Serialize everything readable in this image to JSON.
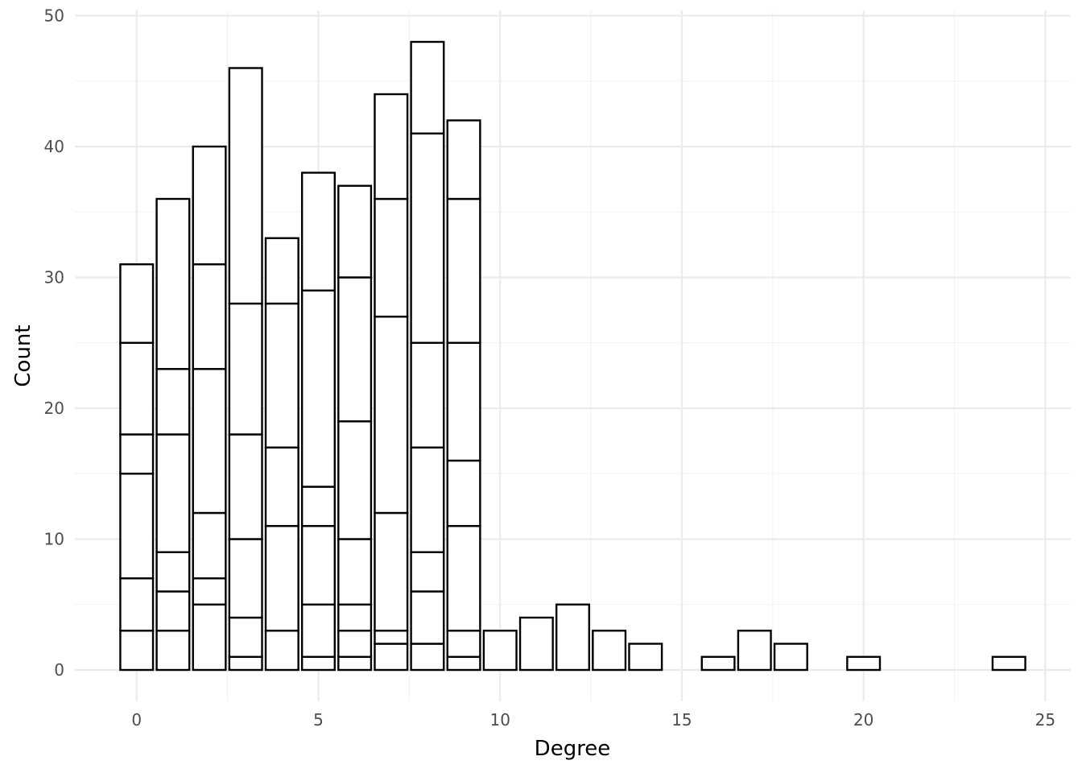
{
  "chart_data": {
    "type": "bar",
    "stacked": true,
    "title": "",
    "xlabel": "Degree",
    "ylabel": "Count",
    "xlim": [
      -1.7,
      25.7
    ],
    "ylim": [
      -2.4,
      50.4
    ],
    "x_ticks": [
      0,
      5,
      10,
      15,
      20,
      25
    ],
    "y_ticks": [
      0,
      10,
      20,
      30,
      40,
      50
    ],
    "grid": true,
    "legend": "none",
    "colors": {
      "fill": "#ffffff",
      "outline": "#000000",
      "grid_major": "#ebebeb",
      "grid_minor": "#f2f2f2"
    },
    "bars": [
      {
        "x": 0,
        "cumulative": [
          3,
          7,
          15,
          18,
          25,
          31
        ]
      },
      {
        "x": 1,
        "cumulative": [
          3,
          6,
          9,
          18,
          23,
          36
        ]
      },
      {
        "x": 2,
        "cumulative": [
          5,
          7,
          12,
          23,
          31,
          40
        ]
      },
      {
        "x": 3,
        "cumulative": [
          1,
          4,
          10,
          18,
          28,
          46
        ]
      },
      {
        "x": 4,
        "cumulative": [
          3,
          11,
          17,
          28,
          33
        ]
      },
      {
        "x": 5,
        "cumulative": [
          1,
          5,
          11,
          14,
          29,
          38
        ]
      },
      {
        "x": 6,
        "cumulative": [
          1,
          3,
          5,
          10,
          19,
          30,
          37
        ]
      },
      {
        "x": 7,
        "cumulative": [
          2,
          3,
          12,
          27,
          36,
          44
        ]
      },
      {
        "x": 8,
        "cumulative": [
          2,
          6,
          9,
          17,
          25,
          41,
          48
        ]
      },
      {
        "x": 9,
        "cumulative": [
          1,
          3,
          11,
          16,
          25,
          36,
          42
        ]
      },
      {
        "x": 10,
        "cumulative": [
          3
        ]
      },
      {
        "x": 11,
        "cumulative": [
          4
        ]
      },
      {
        "x": 12,
        "cumulative": [
          5
        ]
      },
      {
        "x": 13,
        "cumulative": [
          3
        ]
      },
      {
        "x": 14,
        "cumulative": [
          2
        ]
      },
      {
        "x": 16,
        "cumulative": [
          1
        ]
      },
      {
        "x": 17,
        "cumulative": [
          3
        ]
      },
      {
        "x": 18,
        "cumulative": [
          2
        ]
      },
      {
        "x": 20,
        "cumulative": [
          1
        ]
      },
      {
        "x": 24,
        "cumulative": [
          1
        ]
      }
    ]
  }
}
